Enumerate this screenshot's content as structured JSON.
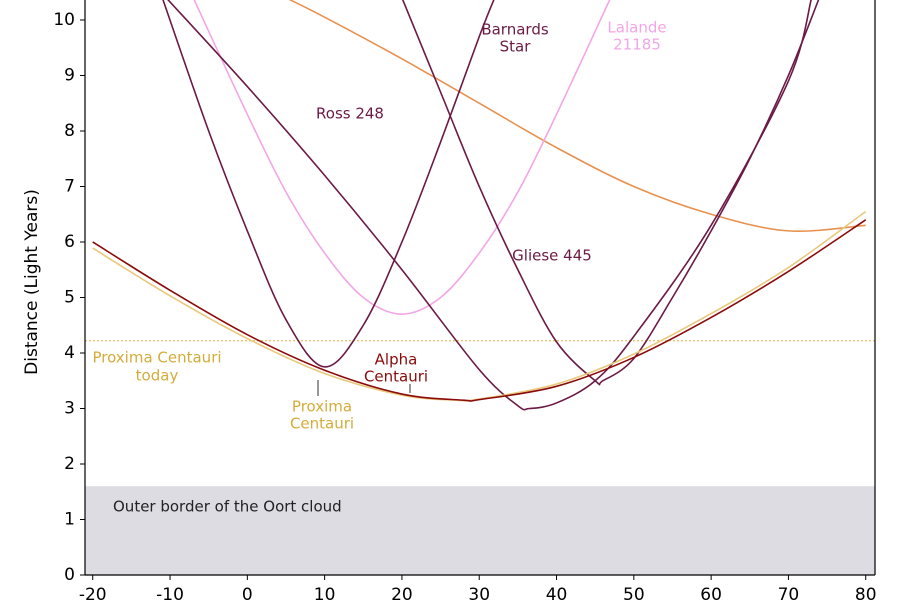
{
  "chart_data": {
    "type": "line",
    "y_label": "Distance (Light Years)",
    "xlim": [
      -21,
      81.2
    ],
    "ylim": [
      0,
      10.36
    ],
    "xticks": [
      -20,
      -10,
      0,
      10,
      20,
      30,
      40,
      50,
      60,
      70,
      80
    ],
    "yticks": [
      0,
      1,
      2,
      3,
      4,
      5,
      6,
      7,
      8,
      9,
      10
    ],
    "band": {
      "ylim": [
        0,
        1.6
      ],
      "color": "#dcdce2",
      "label": "Outer border of the Oort cloud"
    },
    "reference_line": {
      "value": 4.22,
      "color": "#e0b040",
      "label": [
        "Proxima Centauri",
        "today"
      ],
      "label_color": "#d4ac3a"
    },
    "series": [
      {
        "color": "#e8914f",
        "x": [
          5,
          10,
          20,
          30,
          40,
          50,
          60,
          70,
          80
        ],
        "values": [
          10.4,
          10.05,
          9.3,
          8.5,
          7.7,
          7.0,
          6.5,
          6.2,
          6.3
        ]
      },
      {
        "color": "#f2a6e6",
        "label": [
          "Lalande",
          "21185"
        ],
        "x": [
          -7,
          0,
          5,
          10,
          15,
          20,
          25,
          30,
          35,
          40,
          47
        ],
        "values": [
          10.4,
          8.3,
          6.9,
          5.8,
          5.0,
          4.7,
          5.0,
          5.8,
          6.9,
          8.3,
          10.4
        ]
      },
      {
        "color": "#6b1a45",
        "label": [
          "Barnards",
          "Star"
        ],
        "x": [
          -11,
          -5,
          0,
          5,
          10,
          15,
          20,
          25,
          30,
          32
        ],
        "values": [
          10.4,
          8.0,
          6.2,
          4.6,
          3.75,
          4.5,
          6.0,
          7.8,
          9.7,
          10.4
        ]
      },
      {
        "color": "#6b1a45",
        "label": [
          "Ross 248"
        ],
        "x": [
          -10.5,
          0,
          10,
          20,
          30,
          35,
          36.5,
          40,
          45,
          50,
          60,
          70,
          73
        ],
        "values": [
          10.4,
          8.8,
          7.2,
          5.5,
          3.7,
          3.05,
          3.0,
          3.1,
          3.5,
          4.3,
          6.3,
          8.9,
          10.4
        ]
      },
      {
        "color": "#6b1a45",
        "label": [
          "Gliese 445"
        ],
        "x": [
          20,
          25,
          30,
          35,
          40,
          45,
          46,
          50,
          55,
          60,
          65,
          70,
          74
        ],
        "values": [
          10.4,
          8.7,
          7.0,
          5.5,
          4.2,
          3.5,
          3.5,
          3.9,
          5.0,
          6.2,
          7.5,
          9.0,
          10.4
        ]
      },
      {
        "color": "#e8c87a",
        "label": [
          "Proxima",
          "Centauri"
        ],
        "label_color": "#d4ac3a",
        "x": [
          -20,
          -10,
          0,
          10,
          20,
          27,
          30,
          40,
          50,
          60,
          70,
          80
        ],
        "values": [
          5.89,
          5.03,
          4.26,
          3.63,
          3.24,
          3.15,
          3.17,
          3.44,
          3.98,
          4.71,
          5.54,
          6.55
        ]
      },
      {
        "color": "#8b0a0a",
        "label": [
          "Alpha",
          "Centauri"
        ],
        "x": [
          -20,
          -10,
          0,
          10,
          20,
          28,
          30,
          40,
          50,
          60,
          70,
          80
        ],
        "values": [
          6.0,
          5.13,
          4.33,
          3.69,
          3.26,
          3.15,
          3.16,
          3.4,
          3.92,
          4.64,
          5.47,
          6.4
        ]
      }
    ]
  }
}
